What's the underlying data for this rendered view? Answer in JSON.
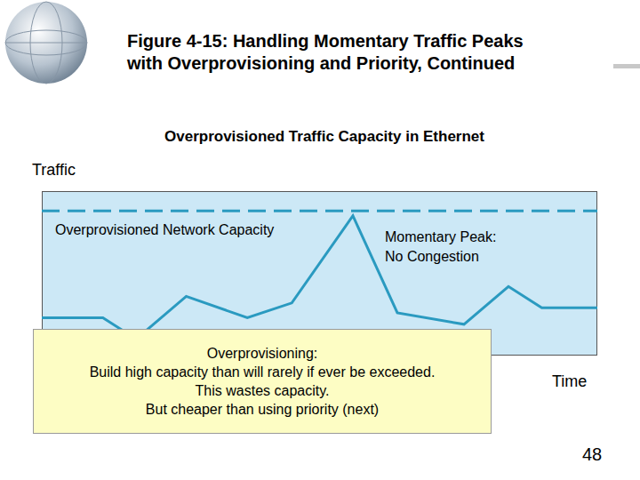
{
  "title": [
    "Figure 4-15: Handling Momentary Traffic Peaks",
    "with Overprovisioning and Priority, Continued"
  ],
  "page_number": 48,
  "callout": [
    "Overprovisioning:",
    "Build high capacity than will rarely if ever be exceeded.",
    "This wastes capacity.",
    "But cheaper than using priority (next)"
  ],
  "chart_data": {
    "type": "line",
    "title": "Overprovisioned Traffic Capacity in Ethernet",
    "y_label": "Traffic",
    "x_label": "Time",
    "x": [
      0,
      11,
      17,
      26,
      37,
      45,
      56,
      64,
      76,
      84,
      90,
      100
    ],
    "values": [
      23,
      23,
      10,
      36,
      23,
      32,
      85,
      26,
      19,
      42,
      29,
      29
    ],
    "color": "#2a9ac0",
    "xlim": [
      0,
      100
    ],
    "ylim": [
      0,
      100
    ],
    "tick_labels": false,
    "capacity": {
      "value": 88,
      "label": "Overprovisioned Network Capacity",
      "line_style": "dashed"
    },
    "annotation": [
      "Momentary Peak:",
      "No Congestion"
    ]
  }
}
